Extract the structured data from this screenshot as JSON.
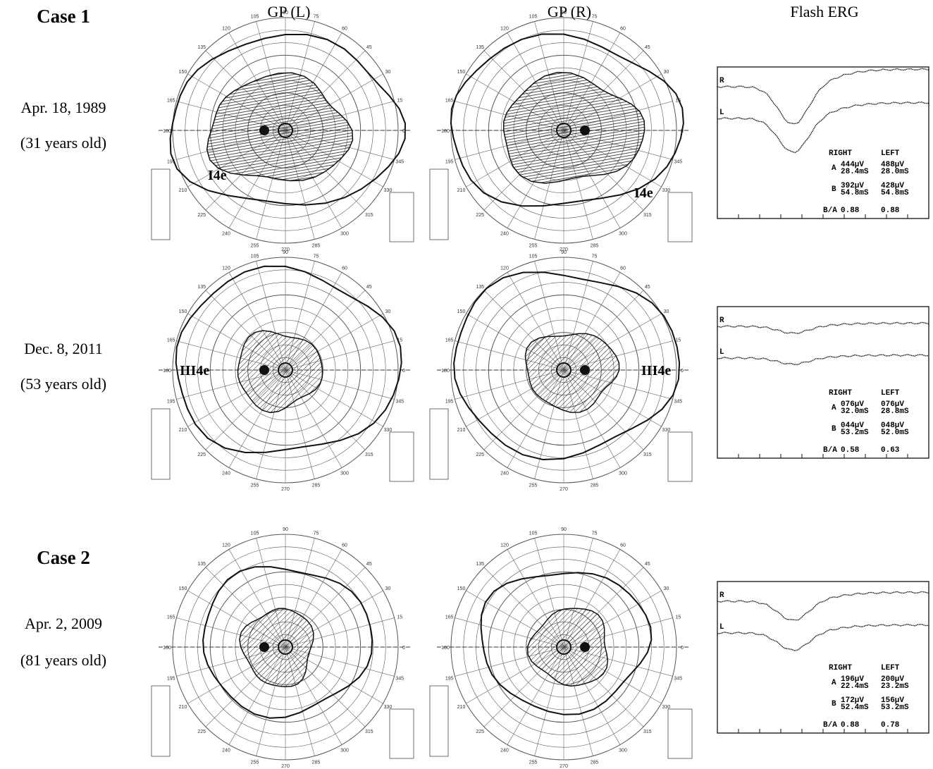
{
  "columns": [
    "GP (L)",
    "GP (R)",
    "Flash ERG"
  ],
  "perimeter_angles": [
    "90",
    "75",
    "60",
    "45",
    "30",
    "15",
    "0",
    "345",
    "330",
    "315",
    "300",
    "285",
    "270",
    "255",
    "240",
    "225",
    "210",
    "195",
    "180",
    "165",
    "150",
    "135",
    "120",
    "105"
  ],
  "rows": [
    {
      "case": "Case 1",
      "date": "Apr. 18, 1989",
      "age": "(31 years old)",
      "gp_left_label": "I4e",
      "gp_right_label": "I4e",
      "erg": {
        "traces": [
          "R",
          "L"
        ],
        "headers": [
          "RIGHT",
          "LEFT"
        ],
        "rows": [
          {
            "label": "A",
            "right": [
              "444µV",
              "28.4mS"
            ],
            "left": [
              "488µV",
              "28.0mS"
            ]
          },
          {
            "label": "B",
            "right": [
              "392µV",
              "54.8mS"
            ],
            "left": [
              "428µV",
              "54.8mS"
            ]
          },
          {
            "label": "B/A",
            "right": [
              "0.88"
            ],
            "left": [
              "0.88"
            ]
          }
        ]
      }
    },
    {
      "date": "Dec. 8, 2011",
      "age": "(53 years old)",
      "gp_left_label": "III4e",
      "gp_right_label": "III4e",
      "erg": {
        "traces": [
          "R",
          "L"
        ],
        "headers": [
          "RIGHT",
          "LEFT"
        ],
        "rows": [
          {
            "label": "A",
            "right": [
              "076µV",
              "32.0mS"
            ],
            "left": [
              "076µV",
              "28.8mS"
            ]
          },
          {
            "label": "B",
            "right": [
              "044µV",
              "53.2mS"
            ],
            "left": [
              "048µV",
              "52.0mS"
            ]
          },
          {
            "label": "B/A",
            "right": [
              "0.58"
            ],
            "left": [
              "0.63"
            ]
          }
        ]
      }
    },
    {
      "case": "Case 2",
      "date": "Apr. 2, 2009",
      "age": "(81 years old)",
      "erg": {
        "traces": [
          "R",
          "L"
        ],
        "headers": [
          "RIGHT",
          "LEFT"
        ],
        "rows": [
          {
            "label": "A",
            "right": [
              "196µV",
              "22.4mS"
            ],
            "left": [
              "200µV",
              "23.2mS"
            ]
          },
          {
            "label": "B",
            "right": [
              "172µV",
              "52.4mS"
            ],
            "left": [
              "156µV",
              "53.2mS"
            ]
          },
          {
            "label": "B/A",
            "right": [
              "0.88"
            ],
            "left": [
              "0.78"
            ]
          }
        ]
      }
    }
  ]
}
